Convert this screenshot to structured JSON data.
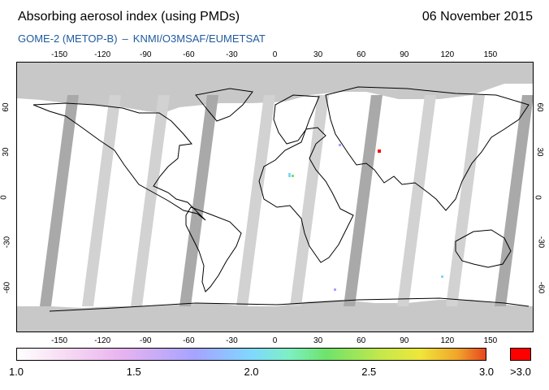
{
  "header": {
    "title": "Absorbing aerosol index (using PMDs)",
    "date": "06 November 2015",
    "instrument": "GOME-2 (METOP-B)",
    "separator": "–",
    "source": "KNMI/O3MSAF/EUMETSAT"
  },
  "map": {
    "projection": "equirectangular",
    "lon_range": [
      -180,
      180
    ],
    "lat_range": [
      -90,
      90
    ],
    "lon_ticks": [
      "-150",
      "-120",
      "-90",
      "-60",
      "-30",
      "0",
      "30",
      "60",
      "90",
      "120",
      "150"
    ],
    "lat_ticks": [
      "60",
      "30",
      "0",
      "-30",
      "-60"
    ],
    "colors": {
      "no_data": "#c8c8c8",
      "swath_gap": "#d2d2d2",
      "orbit_overlap": "#a9a9a9",
      "coastline": "#000000",
      "background": "#ffffff"
    },
    "features": [
      "coastlines",
      "gray orbital swath gaps",
      "polar no-data regions",
      "sparse aerosol detections"
    ]
  },
  "colorbar": {
    "labels": [
      "1.0",
      "1.5",
      "2.0",
      "2.5",
      "3.0"
    ],
    "overflow_label": ">3.0",
    "overflow_color": "#ff0000",
    "gradient_colors": [
      "#ffffff",
      "#f7dcf3",
      "#e9b4f0",
      "#a6a3ff",
      "#7fd8ff",
      "#7df0c3",
      "#6ee36b",
      "#c6e84a",
      "#f0e63a",
      "#f0a52a",
      "#e8471f"
    ]
  }
}
